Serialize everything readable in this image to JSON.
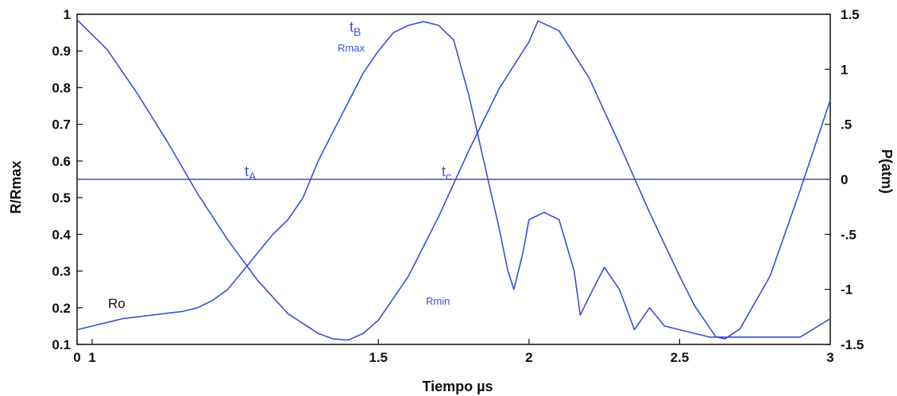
{
  "chart_data": {
    "type": "line",
    "xlabel": "Tiempo µs",
    "ylabel_left": "R/Rmax",
    "ylabel_right": "P(atm)",
    "xlim": [
      0.5,
      3
    ],
    "ylim_left": [
      0.1,
      1
    ],
    "ylim_right": [
      -1.5,
      1.5
    ],
    "x_ticks": [
      "0",
      "1",
      "1.5",
      "2",
      "2.5",
      "3"
    ],
    "y_left_ticks": [
      "0.1",
      "0.2",
      "0.3",
      "0.4",
      "0.5",
      "0.6",
      "0.7",
      "0.8",
      "0.9",
      "1"
    ],
    "y_right_ticks": [
      "-1.5",
      "-1",
      "-.5",
      "0",
      ".5",
      "1",
      "1.5"
    ],
    "grid": false,
    "line_color": "#3a4fd8",
    "annotations": {
      "t_a": "t",
      "t_a_sub": "A",
      "t_b": "t",
      "t_b_sub": "B",
      "t_c": "t",
      "t_c_sub": "c",
      "rmax": "Rmax",
      "rmin": "Rmin",
      "ro": "Ro"
    },
    "series": [
      {
        "axis": "left",
        "x": [
          0.5,
          0.55,
          0.6,
          0.65,
          0.7,
          0.75,
          0.8,
          0.85,
          0.9,
          0.95,
          1.0,
          1.05,
          1.1,
          1.15,
          1.2,
          1.25,
          1.3,
          1.35,
          1.4,
          1.45,
          1.5,
          1.55,
          1.6,
          1.65,
          1.7,
          1.75,
          1.8,
          1.85,
          1.9,
          1.93,
          1.95,
          1.98,
          2.0,
          2.05,
          2.1,
          2.15,
          2.17,
          2.2,
          2.25,
          2.3,
          2.35,
          2.4,
          2.45,
          2.5,
          2.55,
          2.6,
          2.65,
          2.7,
          2.8,
          2.9,
          3.0
        ],
        "values": [
          0.14,
          0.15,
          0.16,
          0.17,
          0.175,
          0.18,
          0.185,
          0.19,
          0.2,
          0.22,
          0.25,
          0.3,
          0.35,
          0.4,
          0.44,
          0.5,
          0.6,
          0.68,
          0.76,
          0.84,
          0.9,
          0.95,
          0.97,
          0.98,
          0.97,
          0.93,
          0.78,
          0.6,
          0.42,
          0.3,
          0.25,
          0.35,
          0.44,
          0.46,
          0.44,
          0.3,
          0.18,
          0.23,
          0.31,
          0.25,
          0.14,
          0.2,
          0.15,
          0.14,
          0.13,
          0.12,
          0.12,
          0.12,
          0.12,
          0.12,
          0.17
        ]
      },
      {
        "axis": "right",
        "x": [
          0.5,
          0.6,
          0.7,
          0.8,
          0.9,
          1.0,
          1.1,
          1.2,
          1.3,
          1.35,
          1.4,
          1.45,
          1.5,
          1.6,
          1.7,
          1.8,
          1.9,
          2.0,
          2.03,
          2.1,
          2.2,
          2.3,
          2.4,
          2.5,
          2.55,
          2.6,
          2.62,
          2.65,
          2.7,
          2.8,
          2.9,
          3.0
        ],
        "values": [
          1.45,
          1.18,
          0.78,
          0.34,
          -0.13,
          -0.55,
          -0.92,
          -1.22,
          -1.4,
          -1.45,
          -1.46,
          -1.4,
          -1.28,
          -0.88,
          -0.34,
          0.26,
          0.82,
          1.25,
          1.44,
          1.35,
          0.92,
          0.32,
          -0.3,
          -0.88,
          -1.15,
          -1.35,
          -1.43,
          -1.45,
          -1.36,
          -0.88,
          -0.1,
          0.72
        ]
      },
      {
        "axis": "right",
        "x": [
          0.5,
          3.0
        ],
        "values": [
          0,
          0
        ]
      }
    ]
  }
}
